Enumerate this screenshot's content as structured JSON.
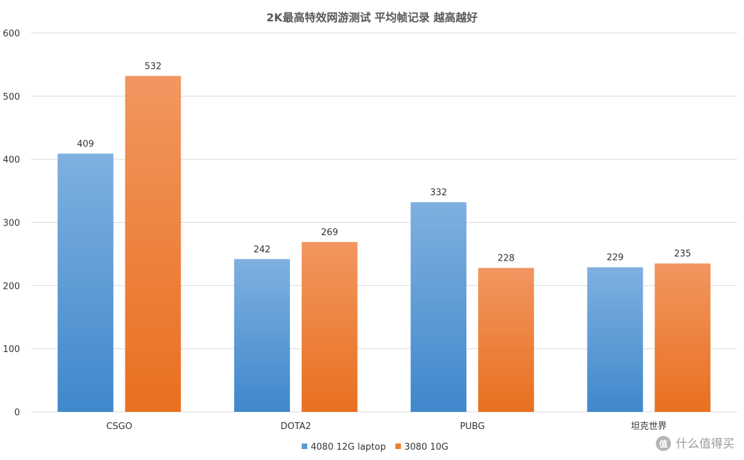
{
  "chart_data": {
    "type": "bar",
    "title": "2K最高特效网游测试 平均帧记录 越高越好",
    "categories": [
      "CSGO",
      "DOTA2",
      "PUBG",
      "坦克世界"
    ],
    "series": [
      {
        "name": "4080 12G laptop",
        "values": [
          409,
          242,
          332,
          229
        ],
        "color": "#5b9bd5"
      },
      {
        "name": "3080 10G",
        "values": [
          532,
          269,
          228,
          235
        ],
        "color": "#ed7d31"
      }
    ],
    "ylim": [
      0,
      600
    ],
    "yticks": [
      0,
      100,
      200,
      300,
      400,
      500,
      600
    ],
    "grid": true,
    "legend_position": "bottom"
  },
  "watermark": {
    "text": "什么值得买",
    "icon": "zhi-logo-icon"
  }
}
